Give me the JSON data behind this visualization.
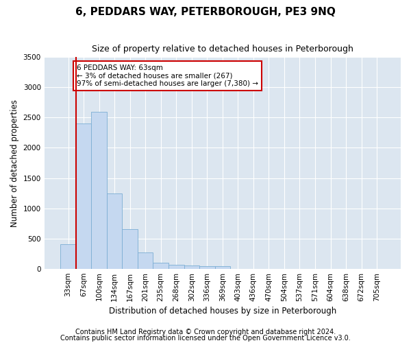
{
  "title": "6, PEDDARS WAY, PETERBOROUGH, PE3 9NQ",
  "subtitle": "Size of property relative to detached houses in Peterborough",
  "xlabel": "Distribution of detached houses by size in Peterborough",
  "ylabel": "Number of detached properties",
  "categories": [
    "33sqm",
    "67sqm",
    "100sqm",
    "134sqm",
    "167sqm",
    "201sqm",
    "235sqm",
    "268sqm",
    "302sqm",
    "336sqm",
    "369sqm",
    "403sqm",
    "436sqm",
    "470sqm",
    "504sqm",
    "537sqm",
    "571sqm",
    "604sqm",
    "638sqm",
    "672sqm",
    "705sqm"
  ],
  "values": [
    400,
    2400,
    2600,
    1250,
    650,
    270,
    100,
    65,
    55,
    45,
    40,
    0,
    0,
    0,
    0,
    0,
    0,
    0,
    0,
    0,
    0
  ],
  "bar_color": "#c5d8f0",
  "bar_edge_color": "#7badd4",
  "red_line_x": 0.5,
  "red_line_color": "#cc0000",
  "annotation_text": "6 PEDDARS WAY: 63sqm\n← 3% of detached houses are smaller (267)\n97% of semi-detached houses are larger (7,380) →",
  "annotation_box_facecolor": "#ffffff",
  "annotation_box_edgecolor": "#cc0000",
  "ylim": [
    0,
    3500
  ],
  "yticks": [
    0,
    500,
    1000,
    1500,
    2000,
    2500,
    3000,
    3500
  ],
  "fig_bg_color": "#ffffff",
  "plot_bg_color": "#dce6f0",
  "grid_color": "#ffffff",
  "title_fontsize": 11,
  "subtitle_fontsize": 9,
  "tick_fontsize": 7.5,
  "label_fontsize": 8.5,
  "footer_fontsize": 7,
  "footer1": "Contains HM Land Registry data © Crown copyright and database right 2024.",
  "footer2": "Contains public sector information licensed under the Open Government Licence v3.0."
}
